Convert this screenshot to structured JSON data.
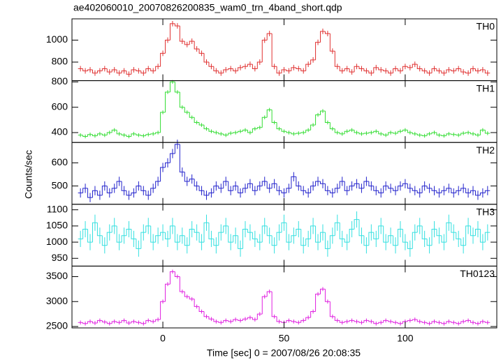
{
  "chart_data": {
    "type": "step",
    "title": "ae402060010_20070826200835_wam0_trn_4band_short.qdp",
    "xlabel": "Time [sec] 0 = 2007/08/26 20:08:35",
    "ylabel": "Counts/sec",
    "xlim": [
      -37.5,
      137.8
    ],
    "xticks": [
      0,
      50,
      100
    ],
    "x": [
      -34,
      -32,
      -30,
      -28,
      -26,
      -24,
      -22,
      -20,
      -18,
      -16,
      -14,
      -12,
      -10,
      -8,
      -6,
      -4,
      -2,
      0,
      2,
      4,
      6,
      8,
      10,
      12,
      14,
      16,
      18,
      20,
      22,
      24,
      26,
      28,
      30,
      32,
      34,
      36,
      38,
      40,
      42,
      44,
      46,
      48,
      50,
      52,
      54,
      56,
      58,
      60,
      62,
      64,
      66,
      68,
      70,
      72,
      74,
      76,
      78,
      80,
      82,
      84,
      86,
      88,
      90,
      92,
      94,
      96,
      98,
      100,
      102,
      104,
      106,
      108,
      110,
      112,
      114,
      116,
      118,
      120,
      122,
      124,
      126,
      128,
      130,
      132,
      134
    ],
    "series": [
      {
        "name": "TH0",
        "color": "#e03030",
        "error": 25,
        "ylim": [
          631,
          1194
        ],
        "yticks": [
          800,
          1000
        ],
        "values": [
          740,
          720,
          730,
          700,
          720,
          740,
          710,
          730,
          700,
          720,
          690,
          730,
          720,
          700,
          740,
          720,
          760,
          880,
          1000,
          1150,
          1130,
          990,
          960,
          990,
          920,
          880,
          800,
          760,
          720,
          700,
          730,
          740,
          720,
          750,
          760,
          780,
          740,
          800,
          1000,
          1060,
          760,
          700,
          730,
          720,
          750,
          740,
          720,
          780,
          820,
          980,
          1080,
          1060,
          900,
          760,
          720,
          740,
          710,
          760,
          740,
          720,
          700,
          750,
          730,
          720,
          700,
          740,
          720,
          760,
          750,
          780,
          740,
          720,
          700,
          740,
          720,
          700,
          730,
          720,
          740,
          710,
          700,
          740,
          720,
          730,
          700
        ]
      },
      {
        "name": "TH1",
        "color": "#33dd33",
        "error": 15,
        "ylim": [
          322,
          810
        ],
        "yticks": [
          400,
          600,
          800
        ],
        "values": [
          380,
          370,
          385,
          375,
          390,
          380,
          400,
          420,
          390,
          380,
          370,
          390,
          380,
          375,
          385,
          390,
          400,
          560,
          720,
          800,
          720,
          600,
          560,
          520,
          480,
          460,
          430,
          410,
          400,
          390,
          380,
          395,
          400,
          410,
          420,
          400,
          430,
          440,
          520,
          580,
          480,
          430,
          410,
          400,
          390,
          395,
          400,
          420,
          460,
          540,
          570,
          480,
          430,
          400,
          390,
          410,
          420,
          400,
          390,
          395,
          400,
          410,
          390,
          380,
          400,
          395,
          410,
          420,
          400,
          390,
          380,
          375,
          390,
          400,
          380,
          375,
          390,
          385,
          380,
          395,
          400,
          390,
          380,
          420,
          395
        ]
      },
      {
        "name": "TH2",
        "color": "#2222cc",
        "error": 20,
        "ylim": [
          421,
          688
        ],
        "yticks": [
          500,
          600
        ],
        "values": [
          470,
          490,
          450,
          480,
          460,
          500,
          470,
          490,
          520,
          480,
          460,
          470,
          500,
          480,
          460,
          490,
          520,
          580,
          600,
          640,
          680,
          560,
          520,
          530,
          500,
          480,
          460,
          470,
          500,
          490,
          520,
          480,
          500,
          470,
          490,
          510,
          480,
          500,
          520,
          490,
          510,
          480,
          470,
          490,
          540,
          500,
          480,
          470,
          500,
          520,
          510,
          480,
          470,
          490,
          520,
          480,
          500,
          510,
          490,
          520,
          500,
          480,
          470,
          500,
          490,
          480,
          500,
          510,
          490,
          480,
          470,
          500,
          490,
          480,
          470,
          480,
          490,
          470,
          480,
          490,
          470,
          480,
          460,
          470,
          480
        ]
      },
      {
        "name": "TH3",
        "color": "#33e0e0",
        "error": 25,
        "ylim": [
          926,
          1117
        ],
        "yticks": [
          950,
          1000,
          1050,
          1100
        ],
        "values": [
          1010,
          1040,
          1000,
          1060,
          1020,
          990,
          1030,
          1050,
          1000,
          1020,
          1040,
          1010,
          980,
          1030,
          1050,
          1000,
          1020,
          1030,
          1010,
          1050,
          1000,
          1020,
          990,
          1040,
          1030,
          1000,
          1060,
          1010,
          990,
          1030,
          1050,
          1000,
          1020,
          980,
          1040,
          1030,
          1010,
          1000,
          1050,
          1020,
          990,
          1030,
          1060,
          1000,
          1020,
          1040,
          990,
          1010,
          1050,
          1000,
          1030,
          980,
          1020,
          1060,
          1010,
          1000,
          1040,
          1070,
          1020,
          990,
          1030,
          1010,
          1050,
          1000,
          1020,
          990,
          1040,
          1000,
          980,
          1030,
          1050,
          1010,
          990,
          1040,
          1020,
          1000,
          1060,
          1030,
          1010,
          990,
          1050,
          1020,
          1040,
          1000,
          1030
        ]
      },
      {
        "name": "TH0123",
        "color": "#e020e0",
        "error": 40,
        "ylim": [
          2472,
          3711
        ],
        "yticks": [
          2500,
          3000,
          3500
        ],
        "values": [
          2580,
          2560,
          2600,
          2570,
          2620,
          2590,
          2560,
          2600,
          2580,
          2620,
          2570,
          2600,
          2580,
          2560,
          2620,
          2600,
          2640,
          3000,
          3350,
          3600,
          3500,
          3200,
          3100,
          3050,
          2900,
          2800,
          2700,
          2650,
          2600,
          2580,
          2620,
          2600,
          2640,
          2620,
          2650,
          2680,
          2640,
          2750,
          3100,
          3200,
          2700,
          2600,
          2580,
          2620,
          2600,
          2580,
          2620,
          2680,
          2800,
          3150,
          3250,
          3000,
          2700,
          2620,
          2580,
          2600,
          2620,
          2600,
          2580,
          2620,
          2600,
          2560,
          2580,
          2620,
          2600,
          2580,
          2560,
          2600,
          2620,
          2640,
          2600,
          2580,
          2560,
          2600,
          2580,
          2560,
          2600,
          2580,
          2560,
          2600,
          2620,
          2580,
          2560,
          2600,
          2580
        ]
      }
    ]
  }
}
